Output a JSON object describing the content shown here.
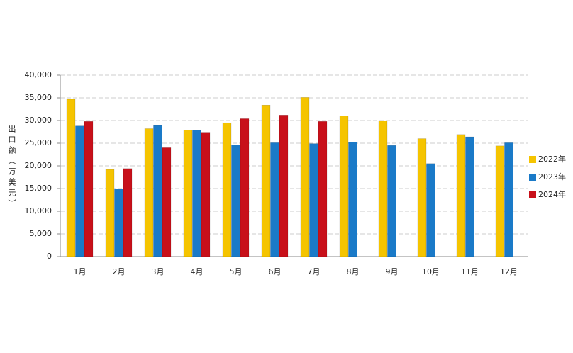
{
  "chart_data": {
    "type": "bar",
    "y_label": "出口额（万美元）",
    "categories": [
      "1月",
      "2月",
      "3月",
      "4月",
      "5月",
      "6月",
      "7月",
      "8月",
      "9月",
      "10月",
      "11月",
      "12月"
    ],
    "series": [
      {
        "name": "2022年",
        "color": "#f5c400",
        "values": [
          34700,
          19200,
          28200,
          27900,
          29500,
          33400,
          35100,
          31000,
          29900,
          26000,
          26900,
          24400
        ]
      },
      {
        "name": "2023年",
        "color": "#1a7ac8",
        "values": [
          28800,
          14900,
          28900,
          27900,
          24600,
          25100,
          24900,
          25200,
          24500,
          20500,
          26400,
          25100
        ]
      },
      {
        "name": "2024年",
        "color": "#c8101a",
        "values": [
          29800,
          19400,
          24000,
          27400,
          30400,
          31200,
          29800,
          null,
          null,
          null,
          null,
          null
        ]
      }
    ],
    "ylim": [
      0,
      40000
    ],
    "yticks": [
      0,
      {
        "value": 5000,
        "label": "5,000"
      },
      {
        "value": 10000,
        "label": "10,000"
      },
      {
        "value": 15000,
        "label": "15,000"
      },
      {
        "value": 20000,
        "label": "20,000"
      },
      {
        "value": 25000,
        "label": "25,000"
      },
      {
        "value": 30000,
        "label": "30,000"
      },
      {
        "value": 35000,
        "label": "35,000"
      },
      {
        "value": 40000,
        "label": "40,000"
      }
    ],
    "grid": true,
    "legend": "right"
  }
}
